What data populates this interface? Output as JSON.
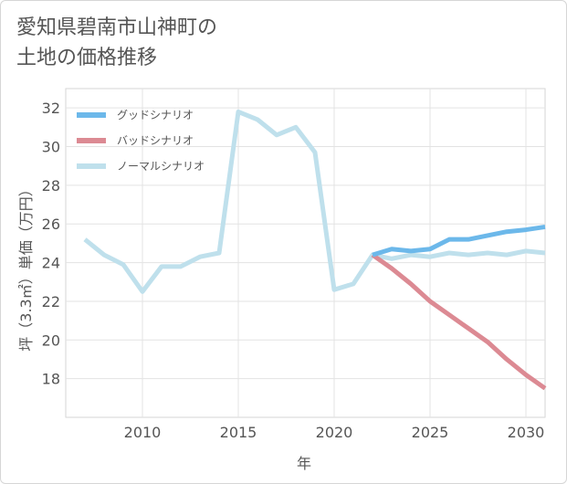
{
  "chart_data": {
    "type": "line",
    "title_lines": [
      "愛知県碧南市山神町の",
      "土地の価格推移"
    ],
    "xlabel": "年",
    "ylabel": "坪（3.3㎡）単価（万円）",
    "xlim": [
      2006,
      2031
    ],
    "ylim": [
      16,
      33
    ],
    "xticks": [
      2010,
      2015,
      2020,
      2025,
      2030
    ],
    "yticks": [
      18,
      20,
      22,
      24,
      26,
      28,
      30,
      32
    ],
    "grid": true,
    "legend_position": "top-left",
    "series": [
      {
        "name": "グッドシナリオ",
        "color": "#6cb8ea",
        "x": [
          2022,
          2023,
          2024,
          2025,
          2026,
          2027,
          2028,
          2029,
          2030,
          2031
        ],
        "values": [
          24.4,
          24.7,
          24.6,
          24.7,
          25.2,
          25.2,
          25.4,
          25.6,
          25.7,
          25.85
        ]
      },
      {
        "name": "バッドシナリオ",
        "color": "#dc8a93",
        "x": [
          2022,
          2023,
          2024,
          2025,
          2026,
          2027,
          2028,
          2029,
          2030,
          2031
        ],
        "values": [
          24.4,
          23.7,
          22.9,
          22.0,
          21.3,
          20.6,
          19.9,
          19.0,
          18.2,
          17.5
        ]
      },
      {
        "name": "ノーマルシナリオ",
        "color": "#bfe0ec",
        "x": [
          2007,
          2008,
          2009,
          2010,
          2011,
          2012,
          2013,
          2014,
          2015,
          2016,
          2017,
          2018,
          2019,
          2020,
          2021,
          2022,
          2023,
          2024,
          2025,
          2026,
          2027,
          2028,
          2029,
          2030,
          2031
        ],
        "values": [
          25.2,
          24.4,
          23.9,
          22.5,
          23.8,
          23.8,
          24.3,
          24.5,
          31.8,
          31.4,
          30.6,
          31.0,
          29.7,
          22.6,
          22.9,
          24.4,
          24.2,
          24.4,
          24.3,
          24.5,
          24.4,
          24.5,
          24.4,
          24.6,
          24.5
        ]
      }
    ]
  }
}
